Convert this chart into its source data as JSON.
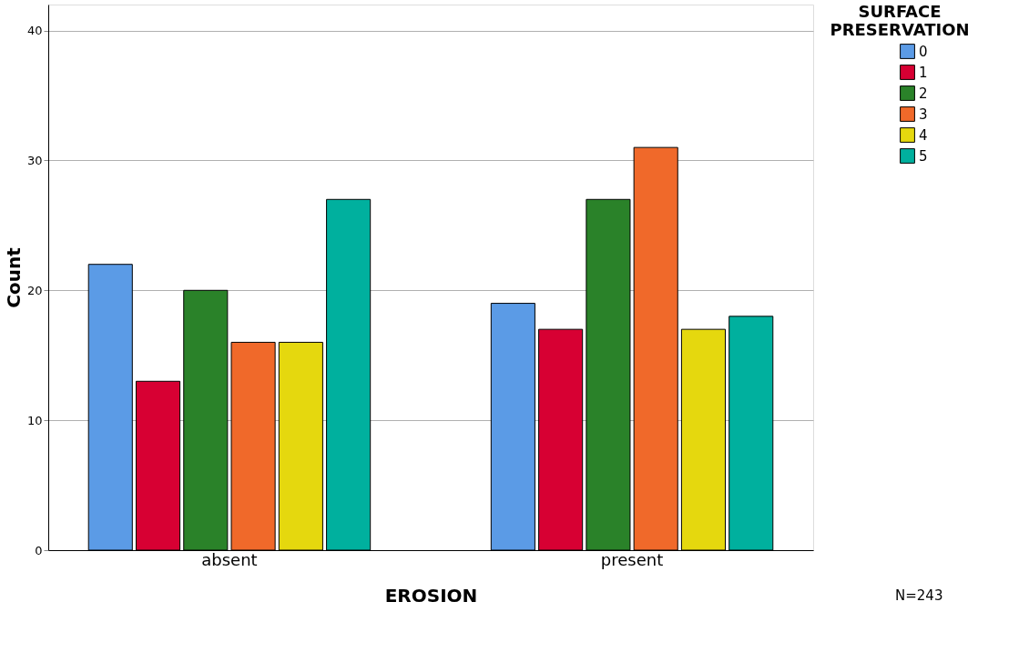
{
  "chart_data": {
    "type": "bar",
    "xlabel": "EROSION",
    "ylabel": "Count",
    "legend_title": "SURFACE PRESERVATION",
    "categories": [
      "absent",
      "present"
    ],
    "series": [
      {
        "name": "0",
        "color": "#5b9be6",
        "values": [
          22,
          19
        ]
      },
      {
        "name": "1",
        "color": "#d70033",
        "values": [
          13,
          17
        ]
      },
      {
        "name": "2",
        "color": "#2a8229",
        "values": [
          20,
          27
        ]
      },
      {
        "name": "3",
        "color": "#f0692a",
        "values": [
          16,
          31
        ]
      },
      {
        "name": "4",
        "color": "#e5d80e",
        "values": [
          16,
          17
        ]
      },
      {
        "name": "5",
        "color": "#00b09e",
        "values": [
          27,
          18
        ]
      }
    ],
    "ylim": [
      0,
      42
    ],
    "yticks": [
      0,
      10,
      20,
      30,
      40
    ],
    "grid": "y",
    "legend": "top right",
    "annotations": [
      "N=243"
    ]
  }
}
